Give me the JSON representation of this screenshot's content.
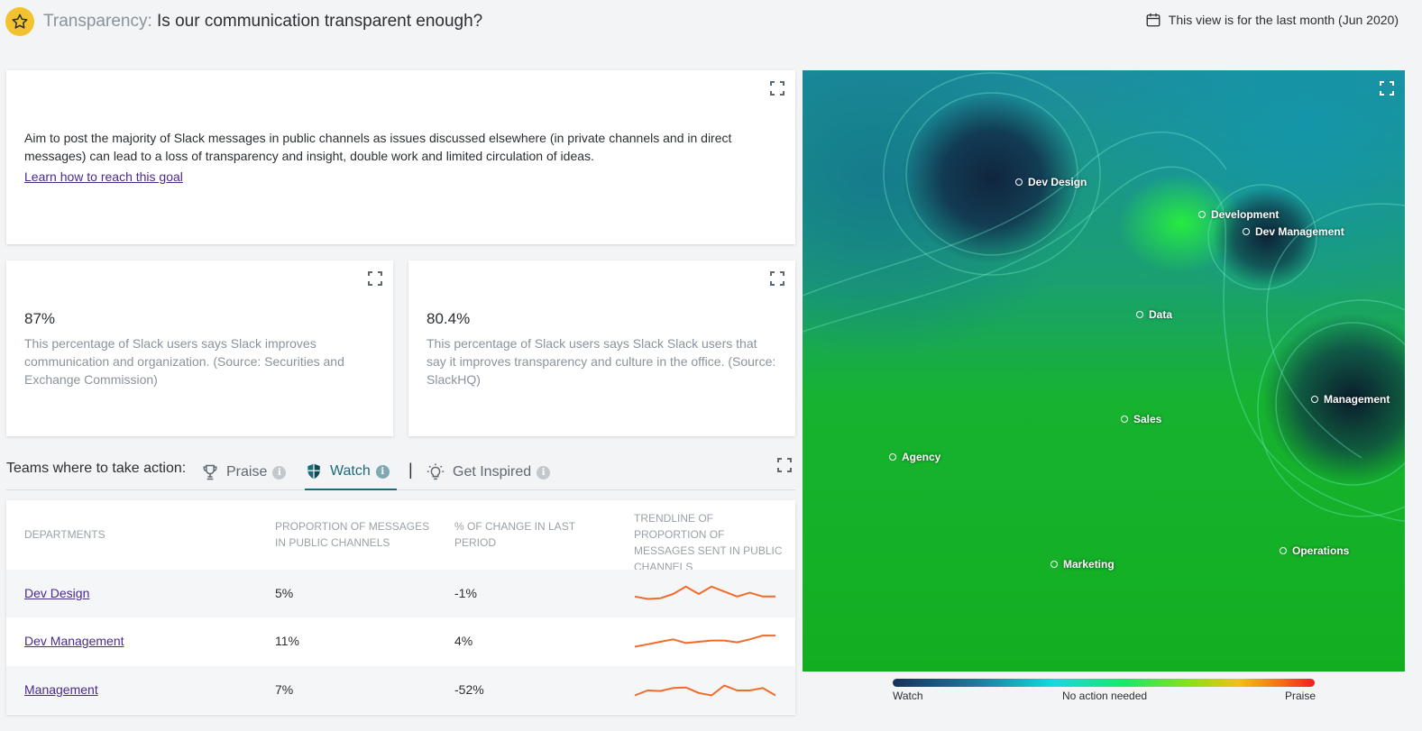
{
  "header": {
    "category": "Transparency:",
    "question": "Is our communication transparent enough?",
    "period": "This view is for the last month (Jun 2020)"
  },
  "goal": {
    "text": "Aim to post the majority of Slack messages in public channels as issues discussed elsewhere (in private channels and in direct messages) can lead to a loss of transparency and insight, double work and limited circulation of ideas.",
    "link": "Learn how to reach this goal"
  },
  "stats": [
    {
      "value": "87%",
      "desc": "This percentage of Slack users says Slack improves communication and organization. (Source: Securities and Exchange Commission)"
    },
    {
      "value": "80.4%",
      "desc": "This percentage of Slack users says Slack Slack users that say it improves transparency and culture in the office. (Source: SlackHQ)"
    }
  ],
  "teams": {
    "label": "Teams where to take action:",
    "tabs": [
      {
        "label": "Praise",
        "active": false
      },
      {
        "label": "Watch",
        "active": true
      },
      {
        "label": "Get Inspired",
        "active": false
      }
    ],
    "separator": "|"
  },
  "table": {
    "columns": [
      "Departments",
      "Proportion of messages in public channels",
      "% of change in last period",
      "Trendline of proportion of messages sent in public channels"
    ],
    "rows": [
      {
        "dept": "Dev Design",
        "proportion": "5%",
        "change": "-1%",
        "trend": [
          3,
          2,
          2.3,
          4,
          7,
          4,
          7,
          5,
          3,
          4.5,
          3,
          3
        ]
      },
      {
        "dept": "Dev Management",
        "proportion": "11%",
        "change": "4%",
        "trend": [
          2,
          3,
          4,
          5,
          3.5,
          4,
          4.5,
          4.5,
          3.8,
          5,
          6.5,
          6.5
        ]
      },
      {
        "dept": "Management",
        "proportion": "7%",
        "change": "-52%",
        "trend": [
          2,
          4,
          3.8,
          5,
          5.2,
          3,
          2,
          6,
          4,
          4,
          5,
          2
        ]
      }
    ]
  },
  "map": {
    "nodes": [
      {
        "label": "Dev Design"
      },
      {
        "label": "Development"
      },
      {
        "label": "Dev Management"
      },
      {
        "label": "Data"
      },
      {
        "label": "Management"
      },
      {
        "label": "Sales"
      },
      {
        "label": "Agency"
      },
      {
        "label": "Operations"
      },
      {
        "label": "Marketing"
      }
    ],
    "legend": {
      "left": "Watch",
      "middle": "No action needed",
      "right": "Praise"
    }
  },
  "colors": {
    "accent": "#1d6b7a",
    "link": "#4a2a8c",
    "star": "#f2c230",
    "trend": "#f26b2a"
  }
}
